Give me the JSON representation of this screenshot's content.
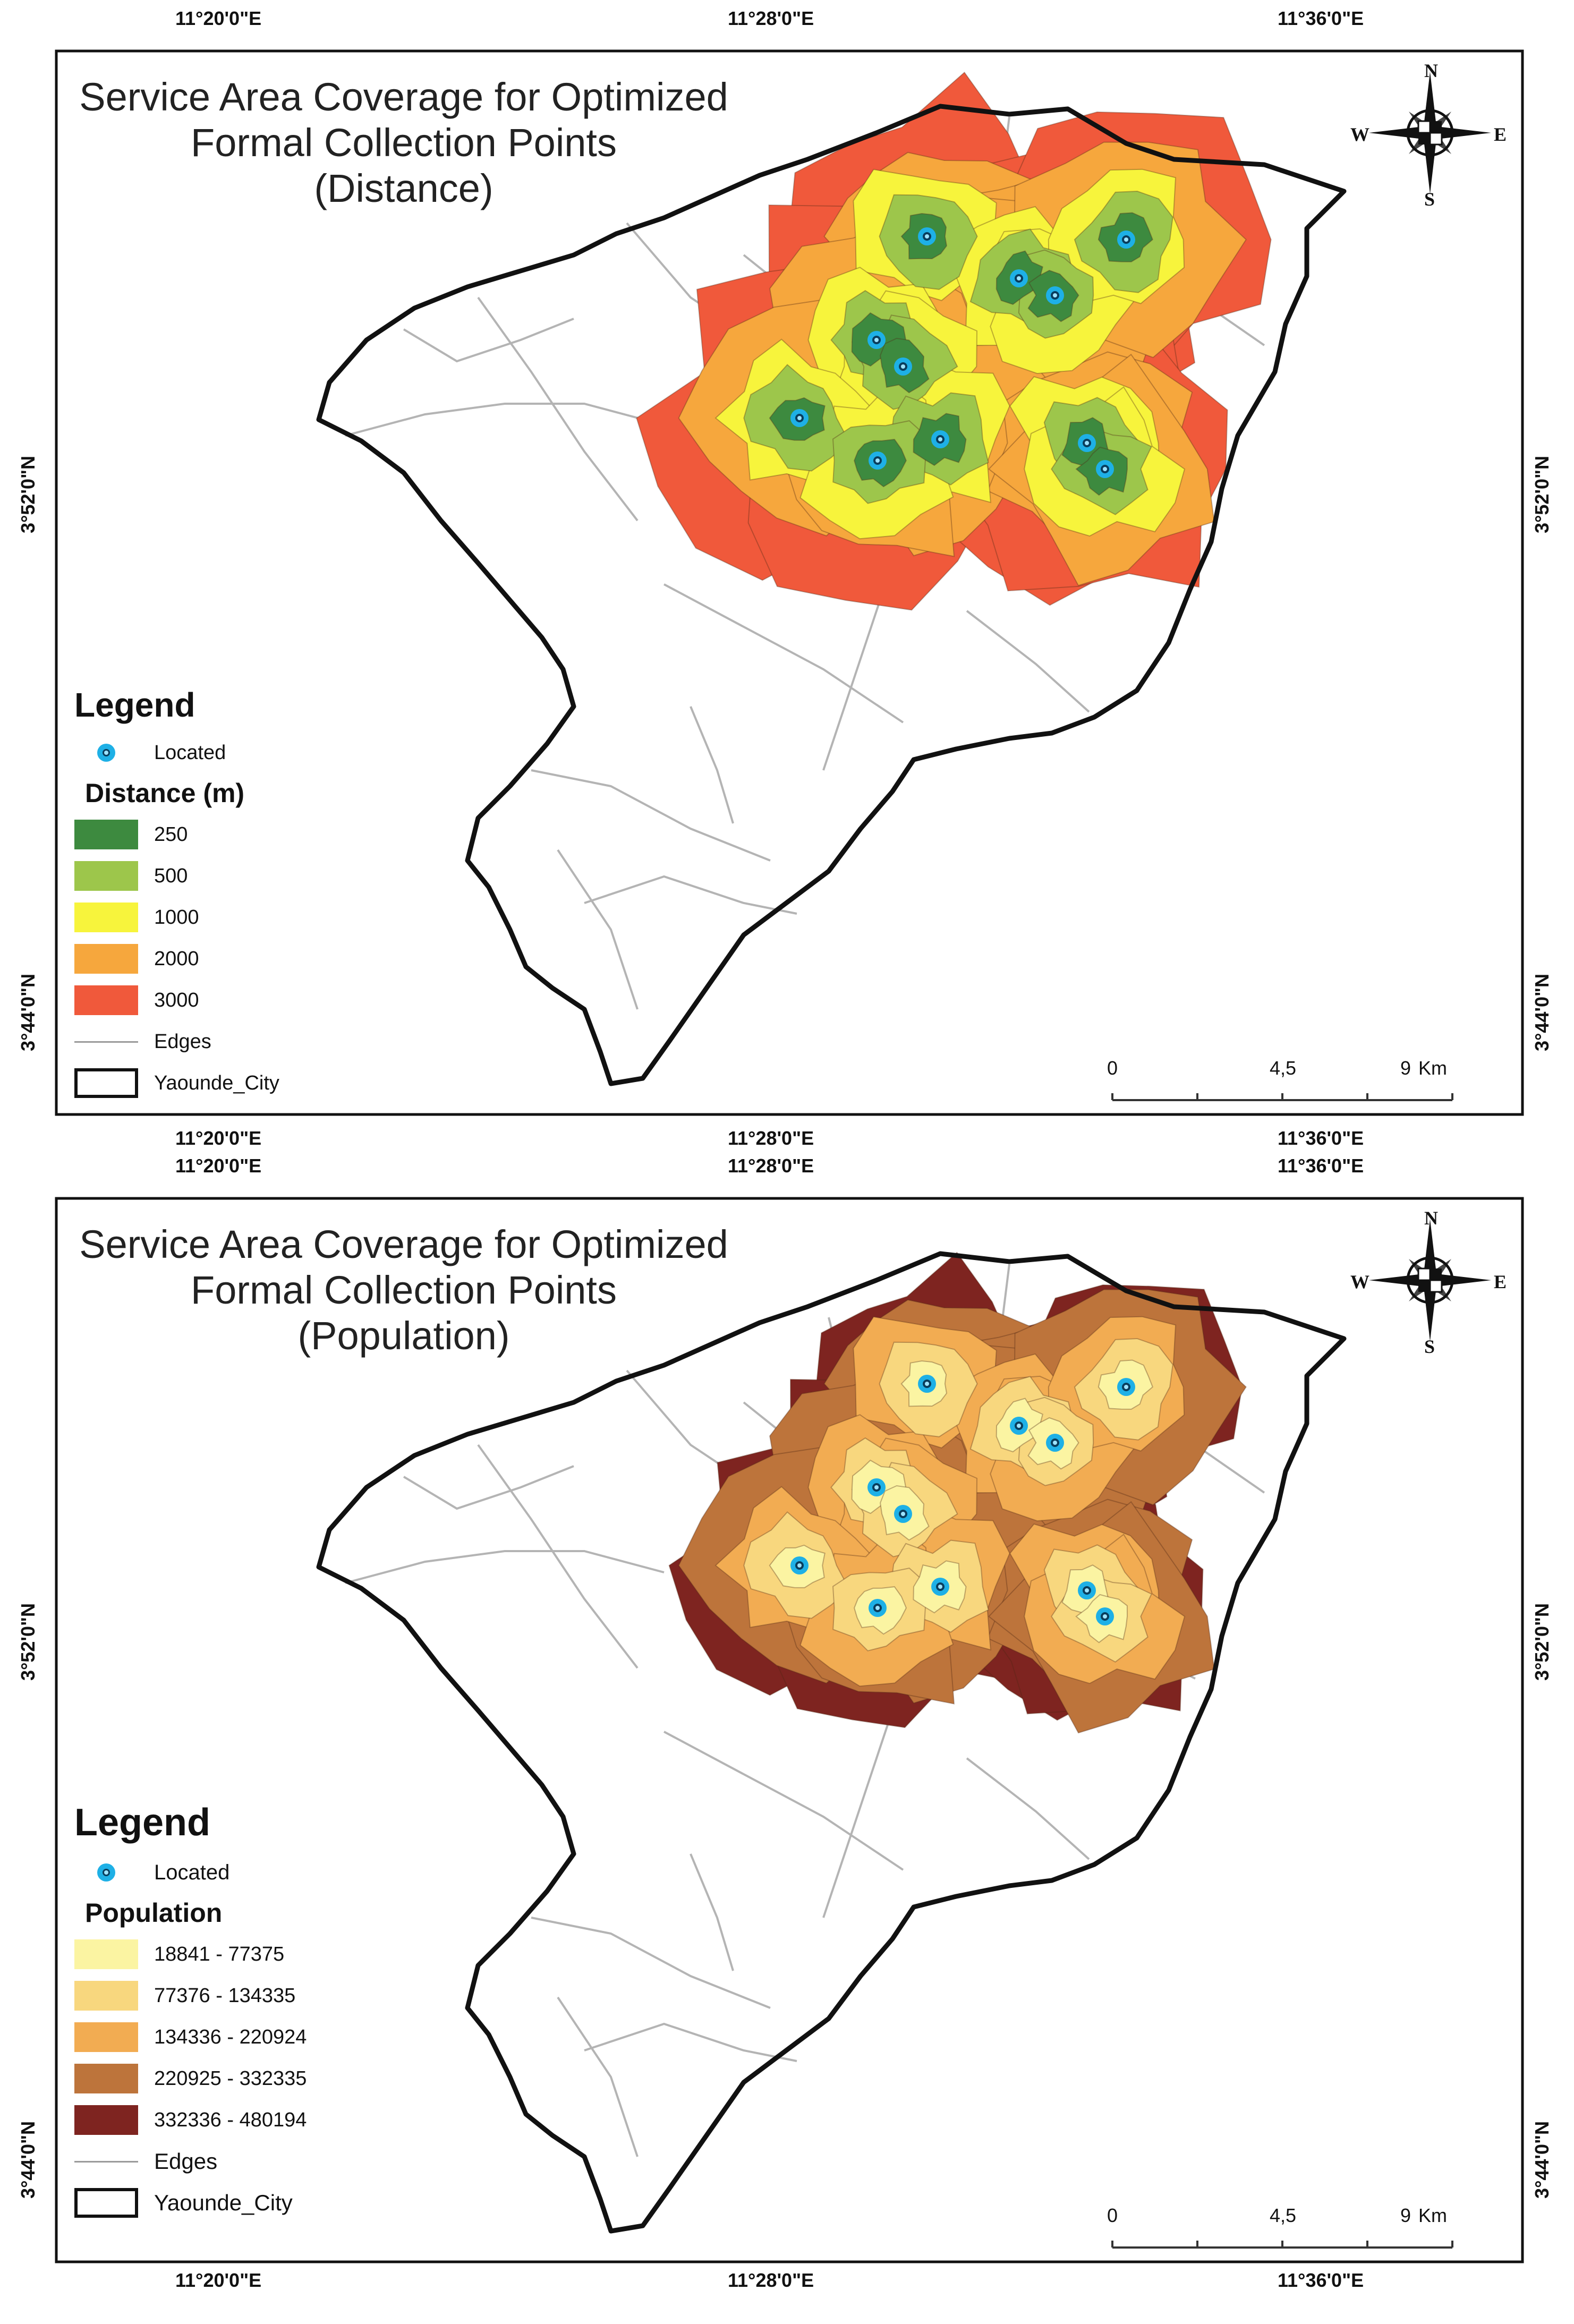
{
  "axis_labels": {
    "lon": [
      "11°20'0\"E",
      "11°28'0\"E",
      "11°36'0\"E"
    ],
    "lat": [
      "3°52'0\"N",
      "3°44'0\"N"
    ]
  },
  "compass": {
    "n": "N",
    "s": "S",
    "e": "E",
    "w": "W"
  },
  "scale": {
    "ticks": [
      "0",
      "4,5",
      "9"
    ],
    "unit": "Km"
  },
  "colors": {
    "city_outline": "#111111",
    "edges": "#a8a8a8",
    "located_point": "#1eb0e6"
  },
  "panels": [
    {
      "title": [
        "Service Area Coverage for Optimized",
        "Formal Collection Points",
        "(Distance)"
      ],
      "legend": {
        "heading": "Legend",
        "located_label": "Located",
        "field_title": "Distance (m)",
        "classes": [
          {
            "label": "250",
            "color": "#3d8a3f"
          },
          {
            "label": "500",
            "color": "#9dc64b"
          },
          {
            "label": "1000",
            "color": "#f7f43c"
          },
          {
            "label": "2000",
            "color": "#f6a73d"
          },
          {
            "label": "3000",
            "color": "#f0593b"
          }
        ],
        "edges_label": "Edges",
        "city_label": "Yaounde_City"
      }
    },
    {
      "title": [
        "Service Area Coverage for Optimized",
        "Formal Collection Points",
        "(Population)"
      ],
      "legend": {
        "heading": "Legend",
        "located_label": "Located",
        "field_title": "Population",
        "classes": [
          {
            "label": "18841 - 77375",
            "color": "#fbf4a2"
          },
          {
            "label": "77376 - 134335",
            "color": "#f8d77e"
          },
          {
            "label": "134336 - 220924",
            "color": "#f2ac52"
          },
          {
            "label": "220925 - 332335",
            "color": "#bd743b"
          },
          {
            "label": "332336 - 480194",
            "color": "#7e2420"
          }
        ],
        "edges_label": "Edges",
        "city_label": "Yaounde_City"
      }
    }
  ]
}
